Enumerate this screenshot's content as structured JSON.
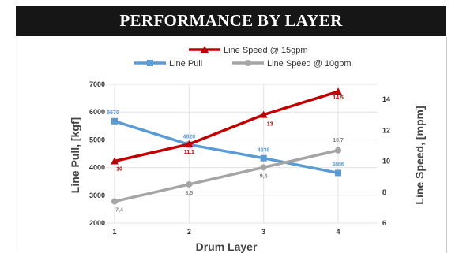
{
  "chart_data": {
    "type": "line",
    "title": "PERFORMANCE BY LAYER",
    "xlabel": "Drum Layer",
    "ylabel_left": "Line Pull, [kgf]",
    "ylabel_right": "Line Speed, [mpm]",
    "categories": [
      "1",
      "2",
      "3",
      "4"
    ],
    "ylim_left": [
      2000,
      7000
    ],
    "yticks_left": [
      "2000",
      "3000",
      "4000",
      "5000",
      "6000",
      "7000"
    ],
    "ylim_right": [
      6,
      14
    ],
    "yticks_right": [
      "6",
      "8",
      "10",
      "12",
      "14"
    ],
    "grid": true,
    "legend_position": "top",
    "series": [
      {
        "name": "Line Speed @ 15gpm",
        "axis": "right",
        "color": "#c00000",
        "marker": "triangle",
        "values": [
          10,
          11.1,
          13,
          14.5
        ],
        "labels": [
          "10",
          "11,1",
          "13",
          "14,5"
        ]
      },
      {
        "name": "Line Pull",
        "axis": "left",
        "color": "#5b9bd5",
        "marker": "square",
        "values": [
          5670,
          4828,
          4338,
          3806
        ],
        "labels": [
          "5670",
          "4828",
          "4338",
          "3806"
        ]
      },
      {
        "name": "Line Speed @ 10gpm",
        "axis": "right",
        "color": "#a5a5a5",
        "marker": "circle",
        "values": [
          7.4,
          8.5,
          9.6,
          10.7
        ],
        "labels": [
          "7,4",
          "8,5",
          "9,6",
          "10,7"
        ]
      }
    ]
  }
}
